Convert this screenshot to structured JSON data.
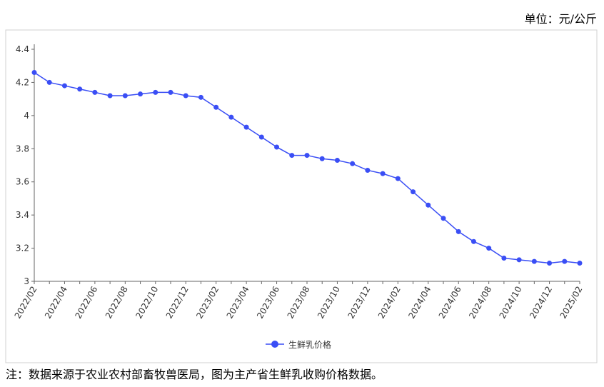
{
  "chart_data": {
    "type": "line",
    "unit_label": "单位：元/公斤",
    "note": "注：数据来源于农业农村部畜牧兽医局，图为主产省生鲜乳收购价格数据。",
    "categories": [
      "2022/02",
      null,
      "2022/04",
      null,
      "2022/06",
      null,
      "2022/08",
      null,
      "2022/10",
      null,
      "2022/12",
      null,
      "2023/02",
      null,
      "2023/04",
      null,
      "2023/06",
      null,
      "2023/08",
      null,
      "2023/10",
      null,
      "2023/12",
      null,
      "2024/02",
      null,
      "2024/04",
      null,
      "2024/06",
      null,
      "2024/08",
      null,
      "2024/10",
      null,
      "2024/12",
      null,
      "2025/02"
    ],
    "series": [
      {
        "name": "生鲜乳价格",
        "color": "#3a4ef5",
        "values": [
          4.26,
          4.2,
          4.18,
          4.16,
          4.14,
          4.12,
          4.12,
          4.13,
          4.14,
          4.14,
          4.12,
          4.11,
          4.05,
          3.99,
          3.93,
          3.87,
          3.81,
          3.76,
          3.76,
          3.74,
          3.73,
          3.71,
          3.67,
          3.65,
          3.62,
          3.54,
          3.46,
          3.38,
          3.3,
          3.24,
          3.2,
          3.14,
          3.13,
          3.12,
          3.11,
          3.12,
          3.11
        ]
      }
    ],
    "ylim": [
      3,
      4.4
    ],
    "yticks": [
      3,
      3.2,
      3.4,
      3.6,
      3.8,
      4,
      4.2,
      4.4
    ],
    "grid": false,
    "legend": "bottom"
  }
}
